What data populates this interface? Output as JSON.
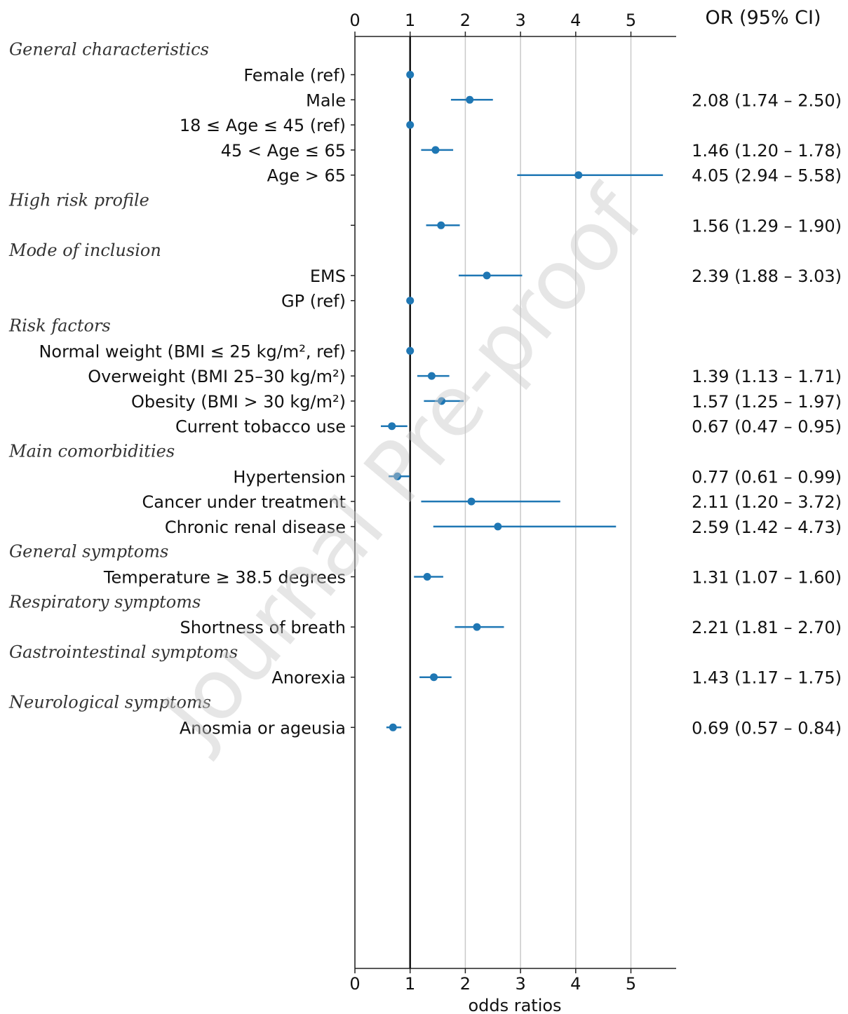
{
  "watermark": "Journal Pre-proof",
  "chart_data": {
    "type": "forest",
    "xlabel": "odds ratios",
    "column_header": "OR (95% CI)",
    "xlim": [
      0,
      5.8
    ],
    "xticks": [
      0,
      1,
      2,
      3,
      4,
      5
    ],
    "reference_line": 1,
    "grid": "vertical",
    "series_color": "#1f77b4",
    "sections": [
      {
        "title": "General characteristics",
        "rows": [
          {
            "label": "Female (ref)",
            "or": 1.0,
            "lo": null,
            "hi": null,
            "ci_text": ""
          },
          {
            "label": "Male",
            "or": 2.08,
            "lo": 1.74,
            "hi": 2.5,
            "ci_text": "2.08 (1.74 – 2.50)"
          },
          {
            "label": "18 ≤ Age ≤ 45 (ref)",
            "or": 1.0,
            "lo": null,
            "hi": null,
            "ci_text": ""
          },
          {
            "label": "45 < Age ≤ 65",
            "or": 1.46,
            "lo": 1.2,
            "hi": 1.78,
            "ci_text": "1.46 (1.20 – 1.78)"
          },
          {
            "label": "Age > 65",
            "or": 4.05,
            "lo": 2.94,
            "hi": 5.58,
            "ci_text": "4.05 (2.94 – 5.58)"
          }
        ]
      },
      {
        "title": "High risk profile",
        "rows": [
          {
            "label": "",
            "or": 1.56,
            "lo": 1.29,
            "hi": 1.9,
            "ci_text": "1.56 (1.29 – 1.90)"
          }
        ]
      },
      {
        "title": "Mode of inclusion",
        "rows": [
          {
            "label": "EMS",
            "or": 2.39,
            "lo": 1.88,
            "hi": 3.03,
            "ci_text": "2.39 (1.88 – 3.03)"
          },
          {
            "label": "GP (ref)",
            "or": 1.0,
            "lo": null,
            "hi": null,
            "ci_text": ""
          }
        ]
      },
      {
        "title": "Risk factors",
        "rows": [
          {
            "label": "Normal weight (BMI ≤ 25 kg/m², ref)",
            "or": 1.0,
            "lo": null,
            "hi": null,
            "ci_text": ""
          },
          {
            "label": "Overweight (BMI 25–30 kg/m²)",
            "or": 1.39,
            "lo": 1.13,
            "hi": 1.71,
            "ci_text": "1.39 (1.13 – 1.71)"
          },
          {
            "label": "Obesity (BMI > 30 kg/m²)",
            "or": 1.57,
            "lo": 1.25,
            "hi": 1.97,
            "ci_text": "1.57 (1.25 – 1.97)"
          },
          {
            "label": "Current tobacco use",
            "or": 0.67,
            "lo": 0.47,
            "hi": 0.95,
            "ci_text": "0.67 (0.47 – 0.95)"
          }
        ]
      },
      {
        "title": "Main comorbidities",
        "rows": [
          {
            "label": "Hypertension",
            "or": 0.77,
            "lo": 0.61,
            "hi": 0.99,
            "ci_text": "0.77 (0.61 – 0.99)"
          },
          {
            "label": "Cancer under treatment",
            "or": 2.11,
            "lo": 1.2,
            "hi": 3.72,
            "ci_text": "2.11 (1.20 – 3.72)"
          },
          {
            "label": "Chronic renal disease",
            "or": 2.59,
            "lo": 1.42,
            "hi": 4.73,
            "ci_text": "2.59 (1.42 – 4.73)"
          }
        ]
      },
      {
        "title": "General symptoms",
        "rows": [
          {
            "label": "Temperature ≥ 38.5 degrees",
            "or": 1.31,
            "lo": 1.07,
            "hi": 1.6,
            "ci_text": "1.31 (1.07 – 1.60)"
          }
        ]
      },
      {
        "title": "Respiratory symptoms",
        "rows": [
          {
            "label": "Shortness of breath",
            "or": 2.21,
            "lo": 1.81,
            "hi": 2.7,
            "ci_text": "2.21 (1.81 – 2.70)"
          }
        ]
      },
      {
        "title": "Gastrointestinal symptoms",
        "rows": [
          {
            "label": "Anorexia",
            "or": 1.43,
            "lo": 1.17,
            "hi": 1.75,
            "ci_text": "1.43 (1.17 – 1.75)"
          }
        ]
      },
      {
        "title": "Neurological symptoms",
        "rows": [
          {
            "label": "Anosmia or ageusia",
            "or": 0.69,
            "lo": 0.57,
            "hi": 0.84,
            "ci_text": "0.69 (0.57 – 0.84)"
          }
        ]
      }
    ]
  }
}
